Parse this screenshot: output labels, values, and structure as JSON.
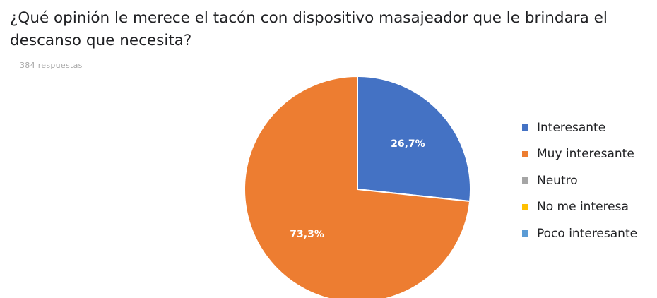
{
  "header": {
    "question": "¿Qué opinión le merece el tacón con dispositivo masajeador que le brindara el descanso que necesita?",
    "responses": "384 respuestas"
  },
  "chart_data": {
    "type": "pie",
    "title": "¿Qué opinión le merece el tacón con dispositivo masajeador que le brindara el descanso que necesita?",
    "legend_position": "right",
    "start_angle_deg": 0,
    "direction": "clockwise",
    "slices": [
      {
        "name": "Interesante",
        "value": 26.7,
        "label": "26,7%",
        "color": "#4472C4"
      },
      {
        "name": "Muy interesante",
        "value": 73.3,
        "label": "73,3%",
        "color": "#ED7D31"
      },
      {
        "name": "Neutro",
        "value": 0,
        "label": "",
        "color": "#A5A5A5"
      },
      {
        "name": "No me interesa",
        "value": 0,
        "label": "",
        "color": "#FFC000"
      },
      {
        "name": "Poco interesante",
        "value": 0,
        "label": "",
        "color": "#5B9BD5"
      }
    ]
  }
}
